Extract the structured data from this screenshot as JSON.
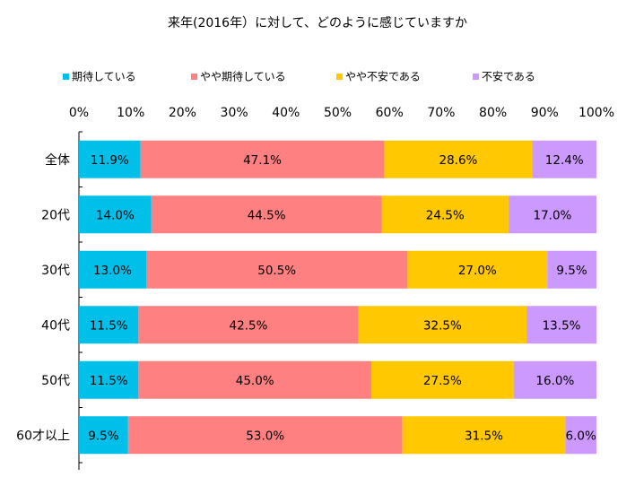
{
  "chart_data": {
    "type": "bar",
    "orientation": "horizontal",
    "stacked": "percent",
    "title": "来年(2016年）に対して、どのように感じていますか",
    "categories": [
      "全体",
      "20代",
      "30代",
      "40代",
      "50代",
      "60才以上"
    ],
    "series": [
      {
        "name": "期待している",
        "color": "#00c0ea",
        "values": [
          11.9,
          14.0,
          13.0,
          11.5,
          11.5,
          9.5
        ],
        "labels": [
          "11.9%",
          "14.0%",
          "13.0%",
          "11.5%",
          "11.5%",
          "9.5%"
        ]
      },
      {
        "name": "やや期待している",
        "color": "#ff8080",
        "values": [
          47.1,
          44.5,
          50.5,
          42.5,
          45.0,
          53.0
        ],
        "labels": [
          "47.1%",
          "44.5%",
          "50.5%",
          "42.5%",
          "45.0%",
          "53.0%"
        ]
      },
      {
        "name": "やや不安である",
        "color": "#ffc800",
        "values": [
          28.6,
          24.5,
          27.0,
          32.5,
          27.5,
          31.5
        ],
        "labels": [
          "28.6%",
          "24.5%",
          "27.0%",
          "32.5%",
          "27.5%",
          "31.5%"
        ]
      },
      {
        "name": "不安である",
        "color": "#cc99ff",
        "values": [
          12.4,
          17.0,
          9.5,
          13.5,
          16.0,
          6.0
        ],
        "labels": [
          "12.4%",
          "17.0%",
          "9.5%",
          "13.5%",
          "16.0%",
          "6.0%"
        ]
      }
    ],
    "xlim": [
      0,
      100
    ],
    "x_ticks": [
      "0%",
      "10%",
      "20%",
      "30%",
      "40%",
      "50%",
      "60%",
      "70%",
      "80%",
      "90%",
      "100%"
    ],
    "legend_position": "top",
    "grid": false
  }
}
